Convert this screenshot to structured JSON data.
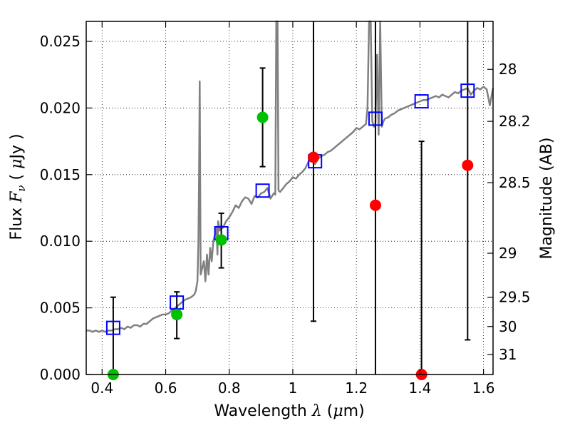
{
  "chart_data": {
    "type": "scatter",
    "xlabel": "Wavelength  λ (μm)",
    "ylabel": "Flux  F_ν  ( μJy )",
    "y2label": "Magnitude (AB)",
    "xlim": [
      0.35,
      1.63
    ],
    "ylim": [
      0.0,
      0.0265
    ],
    "grid": true,
    "x_ticks": [
      0.4,
      0.6,
      0.8,
      1.0,
      1.2,
      1.4,
      1.6
    ],
    "x_tick_labels": [
      "0.4",
      "0.6",
      "0.8",
      "1",
      "1.2",
      "1.4",
      "1.6"
    ],
    "y_ticks": [
      0.0,
      0.005,
      0.01,
      0.015,
      0.02,
      0.025
    ],
    "y_tick_labels": [
      "0.000",
      "0.005",
      "0.010",
      "0.015",
      "0.020",
      "0.025"
    ],
    "y2_ticks": [
      {
        "label": "28",
        "flux": 0.0229
      },
      {
        "label": "28.2",
        "flux": 0.019
      },
      {
        "label": "28.5",
        "flux": 0.0144
      },
      {
        "label": "29",
        "flux": 0.0091
      },
      {
        "label": "29.5",
        "flux": 0.0058
      },
      {
        "label": "30",
        "flux": 0.0036
      },
      {
        "label": "31",
        "flux": 0.0015
      }
    ],
    "model_spectrum": {
      "color": "#808080",
      "x": [
        0.35,
        0.36,
        0.37,
        0.38,
        0.39,
        0.4,
        0.41,
        0.42,
        0.43,
        0.44,
        0.45,
        0.46,
        0.47,
        0.48,
        0.49,
        0.5,
        0.51,
        0.52,
        0.53,
        0.54,
        0.55,
        0.56,
        0.57,
        0.58,
        0.59,
        0.6,
        0.61,
        0.62,
        0.63,
        0.64,
        0.65,
        0.66,
        0.67,
        0.68,
        0.69,
        0.695,
        0.7,
        0.703,
        0.705,
        0.707,
        0.71,
        0.72,
        0.725,
        0.73,
        0.735,
        0.74,
        0.745,
        0.75,
        0.755,
        0.76,
        0.763,
        0.765,
        0.77,
        0.775,
        0.78,
        0.79,
        0.8,
        0.81,
        0.82,
        0.83,
        0.84,
        0.85,
        0.86,
        0.87,
        0.88,
        0.89,
        0.9,
        0.91,
        0.92,
        0.93,
        0.94,
        0.945,
        0.948,
        0.95,
        0.952,
        0.955,
        0.96,
        0.97,
        0.98,
        0.99,
        1.0,
        1.01,
        1.02,
        1.03,
        1.04,
        1.05,
        1.06,
        1.07,
        1.08,
        1.09,
        1.1,
        1.11,
        1.12,
        1.13,
        1.14,
        1.15,
        1.16,
        1.17,
        1.18,
        1.19,
        1.2,
        1.21,
        1.22,
        1.23,
        1.235,
        1.24,
        1.245,
        1.25,
        1.255,
        1.26,
        1.265,
        1.27,
        1.275,
        1.28,
        1.285,
        1.29,
        1.3,
        1.31,
        1.32,
        1.33,
        1.34,
        1.35,
        1.36,
        1.37,
        1.38,
        1.39,
        1.4,
        1.41,
        1.42,
        1.43,
        1.44,
        1.45,
        1.46,
        1.47,
        1.48,
        1.49,
        1.5,
        1.51,
        1.52,
        1.53,
        1.54,
        1.55,
        1.56,
        1.57,
        1.58,
        1.59,
        1.6,
        1.61,
        1.62,
        1.63
      ],
      "y": [
        0.0033,
        0.0033,
        0.0032,
        0.0033,
        0.0032,
        0.0033,
        0.0032,
        0.0033,
        0.0033,
        0.0034,
        0.0034,
        0.0035,
        0.0034,
        0.0036,
        0.0035,
        0.0037,
        0.0037,
        0.0036,
        0.0038,
        0.0038,
        0.004,
        0.0042,
        0.0043,
        0.0044,
        0.0045,
        0.0045,
        0.0046,
        0.0048,
        0.005,
        0.0052,
        0.0054,
        0.0056,
        0.0057,
        0.0058,
        0.006,
        0.0063,
        0.007,
        0.01,
        0.015,
        0.022,
        0.0075,
        0.0085,
        0.007,
        0.009,
        0.0075,
        0.0095,
        0.0085,
        0.01,
        0.0105,
        0.011,
        0.009,
        0.0115,
        0.0108,
        0.0112,
        0.011,
        0.0115,
        0.0118,
        0.0122,
        0.0127,
        0.0125,
        0.013,
        0.0133,
        0.0132,
        0.0128,
        0.0134,
        0.0133,
        0.0136,
        0.0137,
        0.014,
        0.0132,
        0.0136,
        0.0135,
        0.0265,
        0.0265,
        0.0265,
        0.0138,
        0.0137,
        0.014,
        0.0143,
        0.0145,
        0.0148,
        0.0147,
        0.015,
        0.0152,
        0.0155,
        0.016,
        0.0161,
        0.0158,
        0.0162,
        0.0164,
        0.0165,
        0.0167,
        0.0168,
        0.017,
        0.0172,
        0.0174,
        0.0176,
        0.0178,
        0.018,
        0.0182,
        0.0185,
        0.0184,
        0.0186,
        0.0188,
        0.02,
        0.0265,
        0.0265,
        0.019,
        0.0186,
        0.0187,
        0.024,
        0.018,
        0.0265,
        0.0186,
        0.019,
        0.0192,
        0.0193,
        0.0195,
        0.0196,
        0.0198,
        0.0199,
        0.02,
        0.0201,
        0.0202,
        0.0203,
        0.0204,
        0.0205,
        0.0206,
        0.0206,
        0.0207,
        0.0208,
        0.0209,
        0.0208,
        0.021,
        0.0209,
        0.0208,
        0.021,
        0.0212,
        0.0211,
        0.0213,
        0.0214,
        0.0215,
        0.021,
        0.0213,
        0.0215,
        0.0214,
        0.0216,
        0.0214,
        0.0202,
        0.0215
      ]
    },
    "model_photometry": {
      "marker": "open-square",
      "color": "#0000ff",
      "x": [
        0.435,
        0.635,
        0.775,
        0.905,
        1.07,
        1.26,
        1.405,
        1.55
      ],
      "y": [
        0.0035,
        0.0054,
        0.0106,
        0.0138,
        0.016,
        0.0192,
        0.0205,
        0.0213
      ]
    },
    "detections": {
      "marker": "filled-circle",
      "color": "#00c000",
      "x": [
        0.435,
        0.635,
        0.775,
        0.905
      ],
      "y": [
        0.0,
        0.0045,
        0.0101,
        0.0193
      ],
      "yerr_low": [
        0.0,
        0.0027,
        0.008,
        0.0156
      ],
      "yerr_high": [
        0.0058,
        0.0062,
        0.0121,
        0.023
      ]
    },
    "upper_limits": {
      "marker": "filled-circle",
      "color": "#ff0000",
      "x": [
        1.065,
        1.26,
        1.405,
        1.55
      ],
      "y": [
        0.0163,
        0.0127,
        0.0,
        0.0157
      ],
      "yerr_low": [
        0.004,
        0.0,
        0.0,
        0.0026
      ],
      "yerr_high": [
        0.0265,
        0.0265,
        0.0175,
        0.0265
      ]
    }
  }
}
